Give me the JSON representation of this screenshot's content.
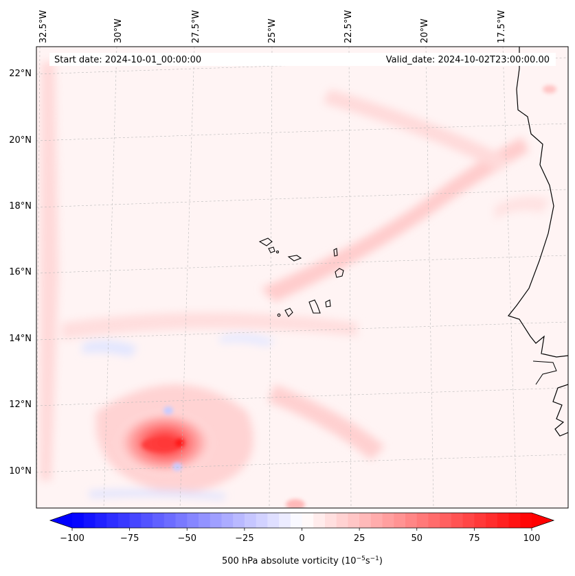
{
  "map": {
    "title_left": "Start date: 2024-10-01_00:00:00",
    "title_right": "Valid_date: 2024-10-02T23:00:00.00",
    "lon_labels": [
      "32.5°W",
      "30°W",
      "27.5°W",
      "25°W",
      "22.5°W",
      "20°W",
      "17.5°W"
    ],
    "lat_labels": [
      "22°N",
      "20°N",
      "18°N",
      "16°N",
      "14°N",
      "12°N",
      "10°N"
    ],
    "islands": "Cape Verde islands",
    "coastline": "West African coast"
  },
  "colorbar": {
    "ticks": [
      "−100",
      "−75",
      "−50",
      "−25",
      "0",
      "25",
      "50",
      "75",
      "100"
    ],
    "tick_values": [
      -100,
      -75,
      -50,
      -25,
      0,
      25,
      50,
      75,
      100
    ],
    "min": -100,
    "max": 100,
    "step": 5,
    "label_text": "500 hPa absolute vorticity (10",
    "label_exp1": "−5",
    "label_mid": "s",
    "label_exp2": "−1",
    "label_close": ")",
    "colors": {
      "negative": "#0000ff",
      "zero": "#ffffff",
      "positive": "#ff0000"
    }
  }
}
